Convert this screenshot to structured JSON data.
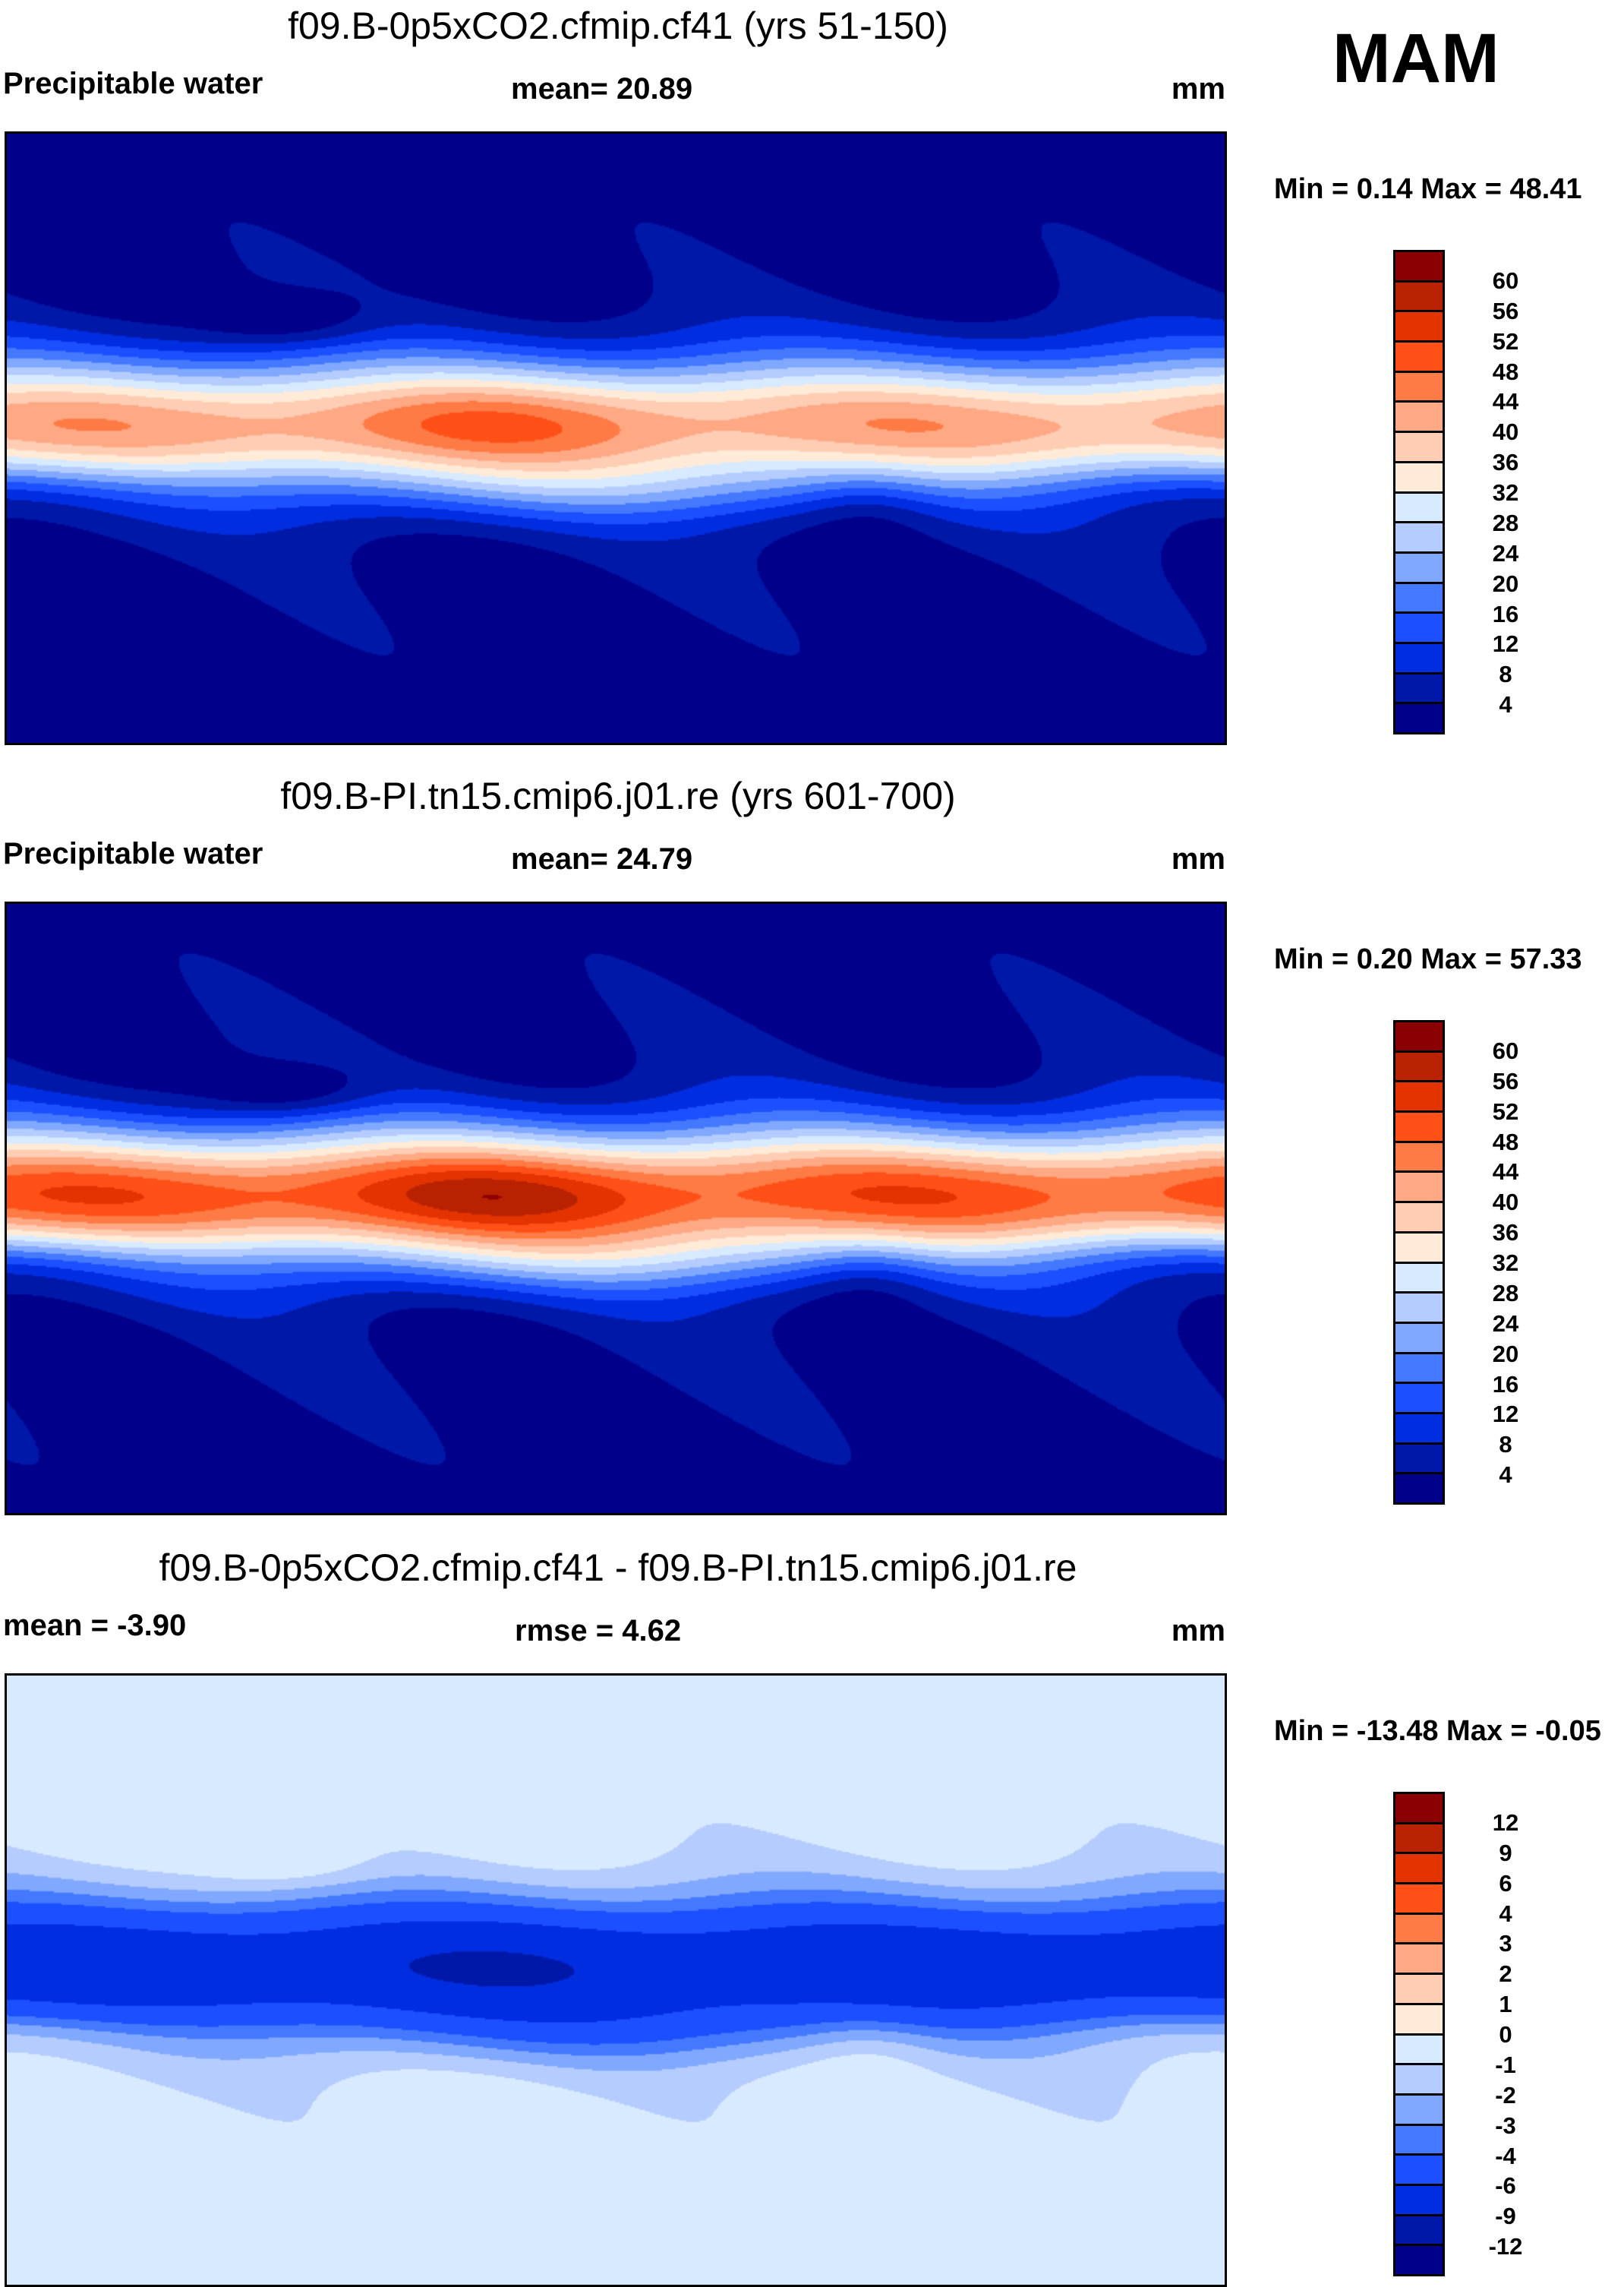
{
  "season": "MAM",
  "chart_data": [
    {
      "type": "heatmap",
      "title": "f09.B-0p5xCO2.cfmip.cf41 (yrs 51-150)",
      "left_label": "Precipitable water",
      "center_label": "mean=  20.89",
      "units": "mm",
      "minmax": "Min =   0.14 Max =  48.41",
      "mean": 20.89,
      "min": 0.14,
      "max": 48.41,
      "levels": [
        "60",
        "56",
        "52",
        "48",
        "44",
        "40",
        "36",
        "32",
        "28",
        "24",
        "20",
        "16",
        "12",
        "8",
        "4"
      ],
      "colors": [
        "#8b0000",
        "#b82200",
        "#e33400",
        "#ff5018",
        "#ff7b45",
        "#ffa884",
        "#ffcdb4",
        "#ffebd8",
        "#d8eaff",
        "#b4ccff",
        "#80a8ff",
        "#4479ff",
        "#1c4fff",
        "#002de0",
        "#0018a8",
        "#00008b"
      ]
    },
    {
      "type": "heatmap",
      "title": "f09.B-PI.tn15.cmip6.j01.re (yrs 601-700)",
      "left_label": "Precipitable water",
      "center_label": "mean=  24.79",
      "units": "mm",
      "minmax": "Min =   0.20 Max =  57.33",
      "mean": 24.79,
      "min": 0.2,
      "max": 57.33,
      "levels": [
        "60",
        "56",
        "52",
        "48",
        "44",
        "40",
        "36",
        "32",
        "28",
        "24",
        "20",
        "16",
        "12",
        "8",
        "4"
      ],
      "colors": [
        "#8b0000",
        "#b82200",
        "#e33400",
        "#ff5018",
        "#ff7b45",
        "#ffa884",
        "#ffcdb4",
        "#ffebd8",
        "#d8eaff",
        "#b4ccff",
        "#80a8ff",
        "#4479ff",
        "#1c4fff",
        "#002de0",
        "#0018a8",
        "#00008b"
      ]
    },
    {
      "type": "heatmap",
      "title": "f09.B-0p5xCO2.cfmip.cf41 - f09.B-PI.tn15.cmip6.j01.re",
      "left_label": "mean =  -3.90",
      "center_label": "rmse =    4.62",
      "units": "mm",
      "minmax": "Min = -13.48 Max =  -0.05",
      "mean": -3.9,
      "rmse": 4.62,
      "min": -13.48,
      "max": -0.05,
      "levels": [
        "12",
        "9",
        "6",
        "4",
        "3",
        "2",
        "1",
        "0",
        "-1",
        "-2",
        "-3",
        "-4",
        "-6",
        "-9",
        "-12"
      ],
      "colors": [
        "#8b0000",
        "#b82200",
        "#e33400",
        "#ff5018",
        "#ff7b45",
        "#ffa884",
        "#ffcdb4",
        "#ffebd8",
        "#d8eaff",
        "#b4ccff",
        "#80a8ff",
        "#4479ff",
        "#1c4fff",
        "#002de0",
        "#0018a8",
        "#00008b"
      ]
    }
  ]
}
